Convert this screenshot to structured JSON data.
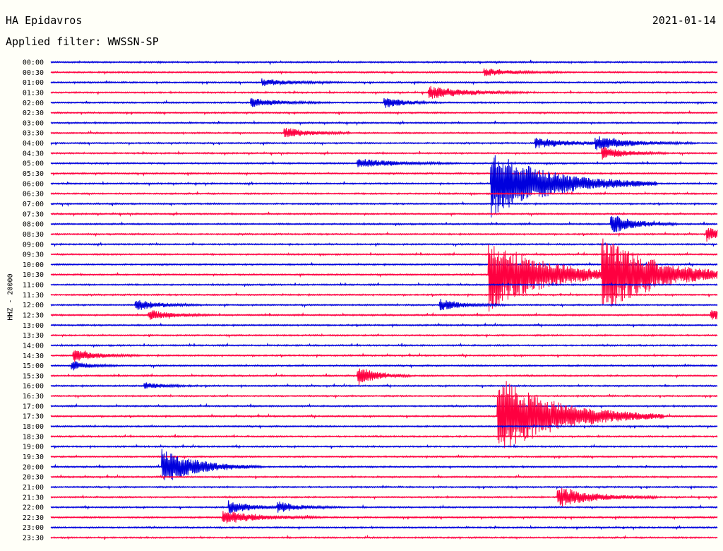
{
  "header": {
    "station": "HA Epidavros",
    "date": "2021-01-14",
    "filter": "Applied filter: WWSSN-SP"
  },
  "chart_data": {
    "type": "line",
    "title": "HA Epidavros",
    "subtitle": "Applied filter: WWSSN-SP",
    "ylabel": "HHZ - 20000",
    "colors": [
      "#0000dd",
      "#ff0040"
    ],
    "rows": [
      "00:00",
      "00:30",
      "01:00",
      "01:30",
      "02:00",
      "02:30",
      "03:00",
      "03:30",
      "04:00",
      "04:30",
      "05:00",
      "05:30",
      "06:00",
      "06:30",
      "07:00",
      "07:30",
      "08:00",
      "08:30",
      "09:00",
      "09:30",
      "10:00",
      "10:30",
      "11:00",
      "11:30",
      "12:00",
      "12:30",
      "13:00",
      "13:30",
      "14:00",
      "14:30",
      "15:00",
      "15:30",
      "16:00",
      "16:30",
      "17:00",
      "17:30",
      "18:00",
      "18:30",
      "19:00",
      "19:30",
      "20:00",
      "20:30",
      "21:00",
      "21:30",
      "22:00",
      "22:30",
      "23:00",
      "23:30"
    ],
    "row_minutes": 30,
    "events": [
      {
        "row": 1,
        "minute": 19.5,
        "amp": 5,
        "dur": 1.2
      },
      {
        "row": 2,
        "minute": 9.5,
        "amp": 5,
        "dur": 1.2
      },
      {
        "row": 3,
        "minute": 17,
        "amp": 9,
        "dur": 1.5
      },
      {
        "row": 4,
        "minute": 9,
        "amp": 6,
        "dur": 1.2
      },
      {
        "row": 4,
        "minute": 15,
        "amp": 8,
        "dur": 0.8
      },
      {
        "row": 7,
        "minute": 10.5,
        "amp": 8,
        "dur": 1.0
      },
      {
        "row": 8,
        "minute": 21.8,
        "amp": 7,
        "dur": 1.5
      },
      {
        "row": 8,
        "minute": 24.5,
        "amp": 9,
        "dur": 1.5
      },
      {
        "row": 9,
        "minute": 24.8,
        "amp": 9,
        "dur": 1.0
      },
      {
        "row": 10,
        "minute": 13.8,
        "amp": 7,
        "dur": 1.5
      },
      {
        "row": 12,
        "minute": 19.8,
        "amp": 48,
        "dur": 2.5
      },
      {
        "row": 16,
        "minute": 25.2,
        "amp": 14,
        "dur": 1.0
      },
      {
        "row": 17,
        "minute": 29.5,
        "amp": 10,
        "dur": 0.8
      },
      {
        "row": 21,
        "minute": 19.7,
        "amp": 52,
        "dur": 2.5
      },
      {
        "row": 21,
        "minute": 24.8,
        "amp": 48,
        "dur": 2.5
      },
      {
        "row": 24,
        "minute": 3.8,
        "amp": 8,
        "dur": 1.0
      },
      {
        "row": 24,
        "minute": 17.5,
        "amp": 8,
        "dur": 1.0
      },
      {
        "row": 25,
        "minute": 4.4,
        "amp": 7,
        "dur": 1.0
      },
      {
        "row": 25,
        "minute": 29.7,
        "amp": 7,
        "dur": 1.0
      },
      {
        "row": 29,
        "minute": 1,
        "amp": 9,
        "dur": 1.0
      },
      {
        "row": 30,
        "minute": 0.9,
        "amp": 7,
        "dur": 0.7
      },
      {
        "row": 31,
        "minute": 13.8,
        "amp": 14,
        "dur": 0.8
      },
      {
        "row": 32,
        "minute": 4.2,
        "amp": 5,
        "dur": 0.8
      },
      {
        "row": 35,
        "minute": 20.1,
        "amp": 58,
        "dur": 2.5
      },
      {
        "row": 40,
        "minute": 5,
        "amp": 26,
        "dur": 1.5
      },
      {
        "row": 43,
        "minute": 22.8,
        "amp": 14,
        "dur": 1.5
      },
      {
        "row": 44,
        "minute": 8,
        "amp": 9,
        "dur": 1.0
      },
      {
        "row": 44,
        "minute": 10.2,
        "amp": 7,
        "dur": 1.0
      },
      {
        "row": 45,
        "minute": 7.7,
        "amp": 10,
        "dur": 1.5
      }
    ]
  }
}
